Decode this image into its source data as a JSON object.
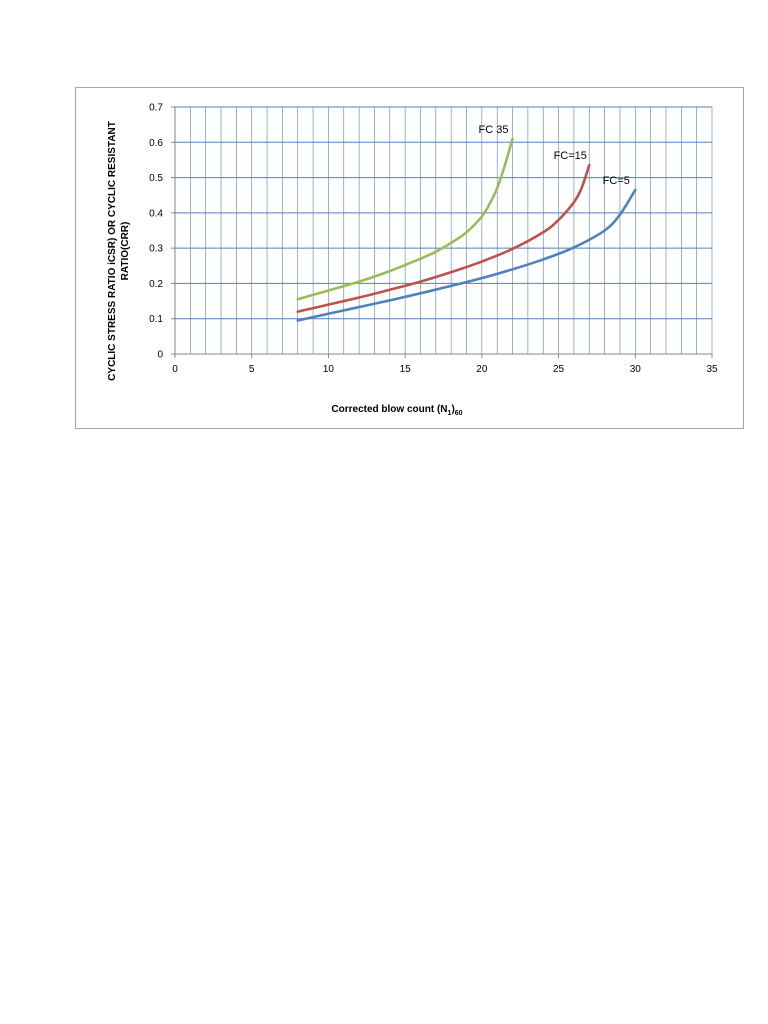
{
  "chart_data": {
    "type": "line",
    "title": "",
    "xlabel": "Corrected blow count (N",
    "xlabel_sub1": "1",
    "xlabel_close": ")",
    "xlabel_sub2": "60",
    "ylabel_line1": "CYCLIC STRESS RATIO iCSR) OR CYCLIC RESISTANT",
    "ylabel_line2": "RATIO(CRR)",
    "xlim": [
      0,
      35
    ],
    "ylim": [
      0,
      0.7
    ],
    "x_ticks": [
      0,
      5,
      10,
      15,
      20,
      25,
      30,
      35
    ],
    "x_tick_labels": [
      "0",
      "5",
      "10",
      "15",
      "20",
      "25",
      "30",
      "35"
    ],
    "y_ticks": [
      0,
      0.1,
      0.2,
      0.3,
      0.4,
      0.5,
      0.6,
      0.7
    ],
    "y_tick_labels": [
      "0",
      "0.1",
      "0.2",
      "0.3",
      "0.4",
      "0.5",
      "0.6",
      "0.7"
    ],
    "x_minor_step": 1,
    "grid": true,
    "legend": "none",
    "series": [
      {
        "name": "FC 35",
        "color": "#9bbb59",
        "x": [
          8,
          10,
          12,
          14,
          16,
          17,
          18,
          19,
          20,
          20.5,
          21,
          21.5,
          22
        ],
        "y": [
          0.155,
          0.18,
          0.205,
          0.235,
          0.27,
          0.29,
          0.315,
          0.345,
          0.39,
          0.425,
          0.47,
          0.535,
          0.61
        ]
      },
      {
        "name": "FC=15",
        "color": "#c0504d",
        "x": [
          8,
          10,
          12,
          14,
          16,
          18,
          20,
          22,
          24,
          25,
          26,
          26.5,
          27
        ],
        "y": [
          0.12,
          0.14,
          0.16,
          0.182,
          0.205,
          0.232,
          0.262,
          0.298,
          0.345,
          0.38,
          0.43,
          0.47,
          0.535
        ]
      },
      {
        "name": "FC=5",
        "color": "#4f81bd",
        "x": [
          8,
          10,
          12,
          14,
          16,
          18,
          20,
          22,
          24,
          26,
          28,
          29,
          30
        ],
        "y": [
          0.095,
          0.114,
          0.133,
          0.152,
          0.172,
          0.193,
          0.215,
          0.24,
          0.268,
          0.302,
          0.35,
          0.395,
          0.465
        ]
      }
    ]
  },
  "colors": {
    "grid": "#4f81bd",
    "axis": "#868686"
  }
}
